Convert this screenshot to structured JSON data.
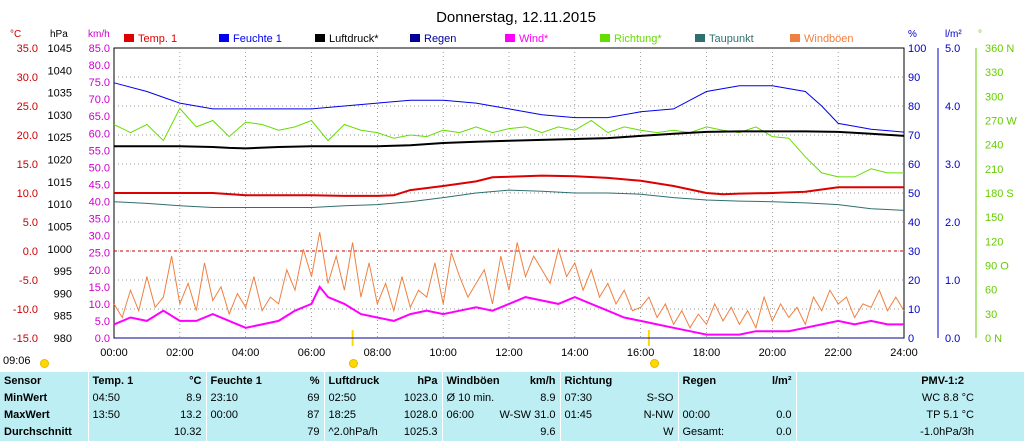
{
  "chart_data": {
    "type": "line",
    "title": "Donnerstag, 12.11.2015",
    "x_ticks": [
      "00:00",
      "02:00",
      "04:00",
      "06:00",
      "08:00",
      "10:00",
      "12:00",
      "14:00",
      "16:00",
      "18:00",
      "20:00",
      "22:00",
      "24:00"
    ],
    "xlim": [
      0,
      24
    ],
    "axes": {
      "temp": {
        "unit": "°C",
        "ticks": [
          "35.0",
          "30.0",
          "25.0",
          "20.0",
          "15.0",
          "10.0",
          "5.0",
          "0.0",
          "-5.0",
          "-10.0",
          "-15.0"
        ],
        "range": [
          -15,
          35
        ],
        "color": "#cc0000"
      },
      "pressure": {
        "unit": "hPa",
        "ticks": [
          "1045",
          "1040",
          "1035",
          "1030",
          "1025",
          "1020",
          "1015",
          "1010",
          "1005",
          "1000",
          "995",
          "990",
          "985",
          "980"
        ],
        "range": [
          980,
          1045
        ],
        "color": "#000000"
      },
      "wind": {
        "unit": "km/h",
        "ticks": [
          "85.0",
          "80.0",
          "75.0",
          "70.0",
          "65.0",
          "60.0",
          "55.0",
          "50.0",
          "45.0",
          "40.0",
          "35.0",
          "30.0",
          "25.0",
          "20.0",
          "15.0",
          "10.0",
          "5.0",
          "0.0"
        ],
        "range": [
          0,
          85
        ],
        "color": "#cc00cc"
      },
      "humidity": {
        "unit": "%",
        "ticks": [
          "100",
          "90",
          "80",
          "70",
          "60",
          "50",
          "40",
          "30",
          "20",
          "10",
          "0"
        ],
        "range": [
          0,
          100
        ],
        "color": "#0000cc"
      },
      "rain": {
        "unit": "l/m²",
        "ticks": [
          "5.0",
          "4.0",
          "3.0",
          "2.0",
          "1.0",
          "0.0"
        ],
        "range": [
          0,
          5
        ],
        "color": "#0000cc"
      },
      "direction": {
        "unit": "°",
        "ticks": [
          "360 N",
          "330",
          "300",
          "270 W",
          "240",
          "210",
          "180 S",
          "150",
          "120",
          "90 O",
          "60",
          "30",
          "0 N"
        ],
        "range": [
          0,
          360
        ],
        "color": "#66cc00"
      }
    },
    "legend": [
      {
        "name": "Temp. 1",
        "color": "#dd0000"
      },
      {
        "name": "Feuchte 1",
        "color": "#0000ee"
      },
      {
        "name": "Luftdruck*",
        "color": "#000000"
      },
      {
        "name": "Regen",
        "color": "#000099"
      },
      {
        "name": "Wind*",
        "color": "#ff00ff"
      },
      {
        "name": "Richtung*",
        "color": "#66dd00"
      },
      {
        "name": "Taupunkt",
        "color": "#2f6f6f"
      },
      {
        "name": "Windböen",
        "color": "#f08040"
      }
    ],
    "series": [
      {
        "name": "Temp. 1",
        "axis": "temp",
        "color": "#dd0000",
        "x": [
          0,
          1,
          2,
          3,
          4,
          5,
          6,
          7,
          8,
          8.5,
          9,
          10,
          11,
          11.5,
          12,
          13,
          14,
          15,
          16,
          17,
          18,
          18.5,
          19,
          20,
          21,
          21.5,
          22,
          23,
          24
        ],
        "y": [
          10.0,
          10.0,
          10.0,
          10.0,
          9.6,
          9.6,
          9.6,
          9.5,
          9.5,
          9.6,
          10.5,
          11.2,
          12.0,
          12.7,
          12.8,
          13.0,
          12.9,
          12.6,
          12.1,
          11.2,
          10.0,
          9.8,
          9.9,
          10.0,
          10.2,
          10.6,
          11.0,
          11.0,
          11.0
        ]
      },
      {
        "name": "Feuchte 1",
        "axis": "humidity",
        "color": "#0000ee",
        "x": [
          0,
          1,
          2,
          3,
          4,
          5,
          6,
          7,
          8,
          9,
          10,
          11,
          12,
          13,
          14,
          15,
          16,
          17,
          17.5,
          18,
          19,
          20,
          21,
          21.5,
          22,
          23,
          24
        ],
        "y": [
          88,
          85,
          81,
          79,
          79,
          79,
          79,
          80,
          81,
          82,
          82,
          81,
          79,
          77,
          76,
          76,
          78,
          79,
          82,
          85,
          87,
          87,
          85,
          80,
          74,
          72,
          71
        ]
      },
      {
        "name": "Luftdruck*",
        "axis": "pressure",
        "color": "#000000",
        "x": [
          0,
          1,
          2,
          3,
          3.5,
          4,
          5,
          6,
          7,
          8,
          9,
          10,
          11,
          12,
          13,
          14,
          15,
          16,
          17,
          18,
          19,
          20,
          21,
          22,
          23,
          24
        ],
        "y": [
          1023.0,
          1023.0,
          1023.0,
          1022.8,
          1022.6,
          1022.5,
          1022.8,
          1023.0,
          1023.0,
          1023.0,
          1023.2,
          1023.7,
          1024.0,
          1024.2,
          1024.4,
          1024.6,
          1024.8,
          1025.3,
          1025.8,
          1026.2,
          1026.3,
          1026.3,
          1026.3,
          1026.2,
          1025.8,
          1025.3
        ]
      },
      {
        "name": "Regen",
        "axis": "rain",
        "color": "#000099",
        "x": [
          0,
          24
        ],
        "y": [
          0,
          0
        ]
      },
      {
        "name": "Wind*",
        "axis": "wind",
        "color": "#ff00ff",
        "x": [
          0,
          0.5,
          1,
          1.5,
          2,
          2.5,
          3,
          3.5,
          4,
          4.5,
          5,
          5.5,
          6,
          6.25,
          6.5,
          7,
          7.5,
          8,
          8.5,
          9,
          9.5,
          10,
          10.5,
          11,
          11.5,
          12,
          12.5,
          13,
          13.5,
          14,
          14.5,
          15,
          15.5,
          16,
          16.5,
          17,
          17.5,
          18,
          18.5,
          19,
          19.5,
          20,
          20.5,
          21,
          21.5,
          22,
          22.5,
          23,
          23.5,
          24
        ],
        "y": [
          4.0,
          6.0,
          5.0,
          8.0,
          5.0,
          5.0,
          7.0,
          5.0,
          3.0,
          4.0,
          5.0,
          8.0,
          10.0,
          15.0,
          12.0,
          10.0,
          7.0,
          6.0,
          5.0,
          7.0,
          8.0,
          7.0,
          8.0,
          9.0,
          8.0,
          10.0,
          12.0,
          11.0,
          10.0,
          12.0,
          10.0,
          8.0,
          6.0,
          5.0,
          4.0,
          3.0,
          2.0,
          1.0,
          1.0,
          1.0,
          2.0,
          2.0,
          2.0,
          3.0,
          4.0,
          5.0,
          4.0,
          5.0,
          4.0,
          4.0
        ]
      },
      {
        "name": "Richtung*",
        "axis": "direction",
        "color": "#66dd00",
        "x": [
          0,
          0.5,
          1,
          1.5,
          2,
          2.5,
          3,
          3.5,
          4,
          4.5,
          5,
          5.5,
          6,
          6.5,
          7,
          7.5,
          8,
          8.5,
          9,
          9.5,
          10,
          10.5,
          11,
          11.5,
          12,
          12.5,
          13,
          13.5,
          14,
          14.5,
          15,
          15.5,
          16,
          16.5,
          17,
          17.5,
          18,
          18.5,
          19,
          19.5,
          20,
          20.5,
          21,
          21.5,
          22,
          22.5,
          23,
          23.5,
          24
        ],
        "y": [
          265,
          255,
          265,
          245,
          285,
          262,
          270,
          250,
          268,
          265,
          258,
          262,
          270,
          245,
          265,
          258,
          255,
          248,
          252,
          250,
          258,
          255,
          262,
          255,
          260,
          262,
          255,
          262,
          258,
          270,
          255,
          262,
          258,
          255,
          258,
          255,
          262,
          258,
          255,
          262,
          250,
          248,
          225,
          205,
          200,
          200,
          210,
          205,
          205
        ]
      },
      {
        "name": "Taupunkt",
        "axis": "temp",
        "color": "#2f6f6f",
        "x": [
          0,
          1,
          2,
          3,
          4,
          5,
          6,
          7,
          8,
          9,
          10,
          11,
          12,
          13,
          14,
          15,
          16,
          17,
          18,
          19,
          20,
          21,
          22,
          23,
          24
        ],
        "y": [
          8.5,
          8.2,
          7.8,
          7.5,
          7.5,
          7.5,
          7.5,
          7.8,
          8.0,
          8.5,
          9.2,
          10.0,
          10.5,
          10.3,
          10.0,
          10.0,
          9.8,
          9.2,
          8.8,
          8.6,
          8.5,
          8.3,
          8.0,
          7.3,
          7.0
        ]
      },
      {
        "name": "Windböen",
        "axis": "wind",
        "color": "#f08040",
        "x": [
          0,
          0.25,
          0.5,
          0.75,
          1,
          1.25,
          1.5,
          1.75,
          2,
          2.25,
          2.5,
          2.75,
          3,
          3.25,
          3.5,
          3.75,
          4,
          4.25,
          4.5,
          4.75,
          5,
          5.25,
          5.5,
          5.75,
          6,
          6.25,
          6.5,
          6.75,
          7,
          7.25,
          7.5,
          7.75,
          8,
          8.25,
          8.5,
          8.75,
          9,
          9.25,
          9.5,
          9.75,
          10,
          10.25,
          10.5,
          10.75,
          11,
          11.25,
          11.5,
          11.75,
          12,
          12.25,
          12.5,
          12.75,
          13,
          13.25,
          13.5,
          13.75,
          14,
          14.25,
          14.5,
          14.75,
          15,
          15.25,
          15.5,
          15.75,
          16,
          16.25,
          16.5,
          16.75,
          17,
          17.25,
          17.5,
          17.75,
          18,
          18.25,
          18.5,
          18.75,
          19,
          19.25,
          19.5,
          19.75,
          20,
          20.25,
          20.5,
          20.75,
          21,
          21.25,
          21.5,
          21.75,
          22,
          22.25,
          22.5,
          22.75,
          23,
          23.25,
          23.5,
          23.75,
          24
        ],
        "y": [
          10,
          6,
          14,
          8,
          18,
          9,
          12,
          24,
          10,
          16,
          8,
          22,
          11,
          15,
          7,
          13,
          9,
          18,
          8,
          12,
          10,
          20,
          14,
          26,
          18,
          31,
          16,
          24,
          14,
          28,
          12,
          22,
          10,
          16,
          8,
          18,
          9,
          14,
          12,
          22,
          10,
          25,
          18,
          12,
          16,
          20,
          10,
          24,
          14,
          28,
          18,
          24,
          20,
          16,
          26,
          18,
          22,
          14,
          20,
          12,
          16,
          10,
          14,
          8,
          9,
          12,
          6,
          10,
          4,
          8,
          3,
          7,
          4,
          10,
          5,
          9,
          4,
          8,
          3,
          12,
          5,
          10,
          6,
          9,
          4,
          12,
          8,
          14,
          10,
          12,
          6,
          10,
          9,
          14,
          8,
          12,
          8
        ]
      }
    ]
  },
  "markers": {
    "time_label": "09:06"
  },
  "stats": {
    "headers": {
      "sensor": "Sensor",
      "temp": "Temp. 1",
      "temp_unit": "°C",
      "feuchte": "Feuchte 1",
      "feuchte_unit": "%",
      "luft": "Luftdruck",
      "luft_unit": "hPa",
      "wind": "Windböen",
      "wind_unit": "km/h",
      "richtung": "Richtung",
      "regen": "Regen",
      "regen_unit": "l/m²",
      "pmv": "PMV-1:2"
    },
    "rows": [
      {
        "label": "MinWert",
        "temp_t": "04:50",
        "temp_v": "8.9",
        "feuchte_t": "23:10",
        "feuchte_v": "69",
        "luft_t": "02:50",
        "luft_v": "1023.0",
        "wind_t": "Ø 10 min.",
        "wind_v": "8.9",
        "richtung_t": "07:30",
        "richtung_v": "S-SO",
        "regen_t": "",
        "regen_v": "",
        "pmv": "WC 8.8 °C"
      },
      {
        "label": "MaxWert",
        "temp_t": "13:50",
        "temp_v": "13.2",
        "feuchte_t": "00:00",
        "feuchte_v": "87",
        "luft_t": "18:25",
        "luft_v": "1028.0",
        "wind_t": "06:00",
        "wind_v": "W-SW 31.0",
        "richtung_t": "01:45",
        "richtung_v": "N-NW",
        "regen_t": "00:00",
        "regen_v": "0.0",
        "pmv": "TP 5.1 °C"
      },
      {
        "label": "Durchschnitt",
        "temp_t": "",
        "temp_v": "10.32",
        "feuchte_t": "",
        "feuchte_v": "79",
        "luft_t": "^2.0hPa/h",
        "luft_v": "1025.3",
        "wind_t": "",
        "wind_v": "9.6",
        "richtung_t": "",
        "richtung_v": "W",
        "regen_t": "Gesamt:",
        "regen_v": "0.0",
        "pmv": "-1.0hPa/3h"
      }
    ]
  }
}
